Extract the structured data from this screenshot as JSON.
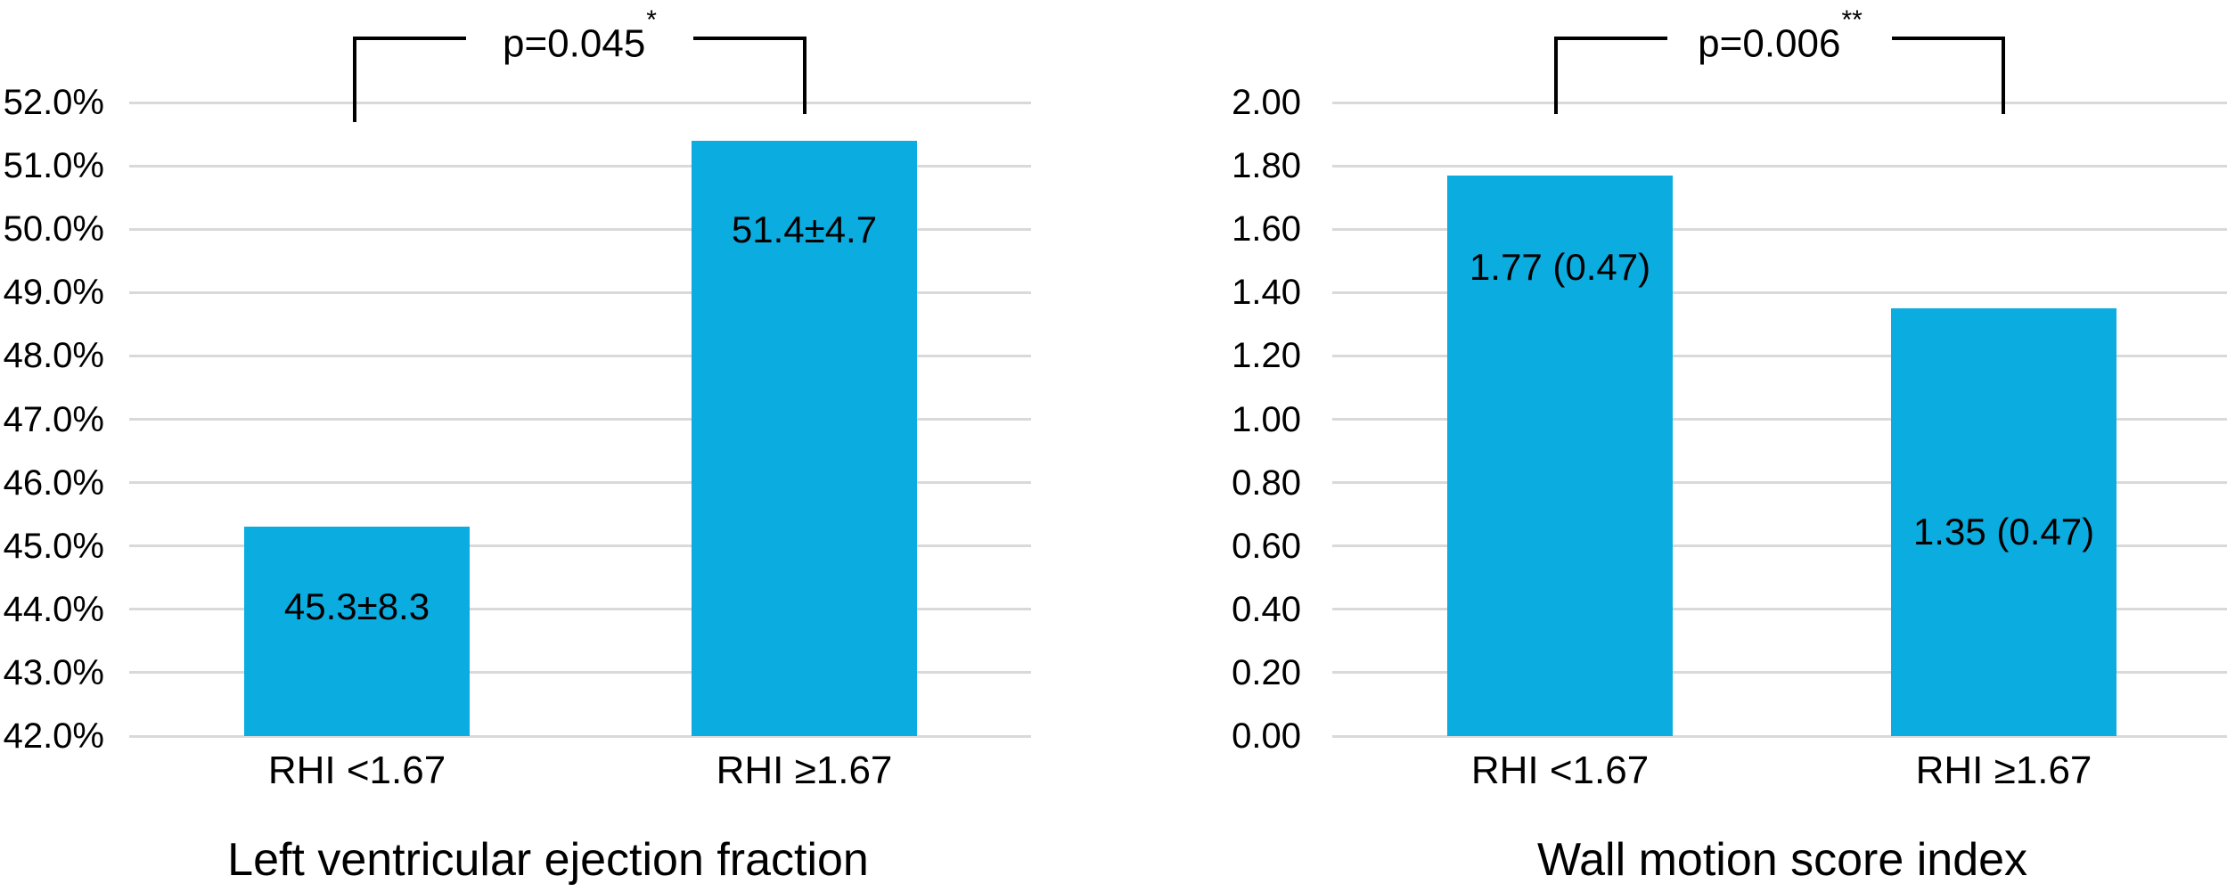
{
  "figure": {
    "background": "#ffffff"
  },
  "colors": {
    "bar": "#0bacdf",
    "gridline": "#d9d9d9",
    "text": "#000000",
    "bracket": "#000000"
  },
  "chart_data": [
    {
      "type": "bar",
      "title": "Left ventricular ejection fraction",
      "categories": [
        "RHI <1.67",
        "RHI ≥1.67"
      ],
      "values": [
        45.3,
        51.4
      ],
      "value_labels": [
        "45.3±8.3",
        "51.4±4.7"
      ],
      "ylim": [
        42.0,
        52.0
      ],
      "ytick_step": 1.0,
      "ytick_labels": [
        "52.0%",
        "51.0%",
        "50.0%",
        "49.0%",
        "48.0%",
        "47.0%",
        "46.0%",
        "45.0%",
        "44.0%",
        "43.0%",
        "42.0%"
      ],
      "grid": true,
      "legend": false,
      "xlabel": "",
      "ylabel": "",
      "significance": {
        "label": "p=0.045",
        "superscript": "*"
      }
    },
    {
      "type": "bar",
      "title": "Wall motion score index",
      "categories": [
        "RHI <1.67",
        "RHI ≥1.67"
      ],
      "values": [
        1.77,
        1.35
      ],
      "value_labels": [
        "1.77 (0.47)",
        "1.35 (0.47)"
      ],
      "ylim": [
        0.0,
        2.0
      ],
      "ytick_step": 0.2,
      "ytick_labels": [
        "2.00",
        "1.80",
        "1.60",
        "1.40",
        "1.20",
        "1.00",
        "0.80",
        "0.60",
        "0.40",
        "0.20",
        "0.00"
      ],
      "grid": true,
      "legend": false,
      "xlabel": "",
      "ylabel": "",
      "significance": {
        "label": "p=0.006",
        "superscript": "**"
      }
    }
  ]
}
